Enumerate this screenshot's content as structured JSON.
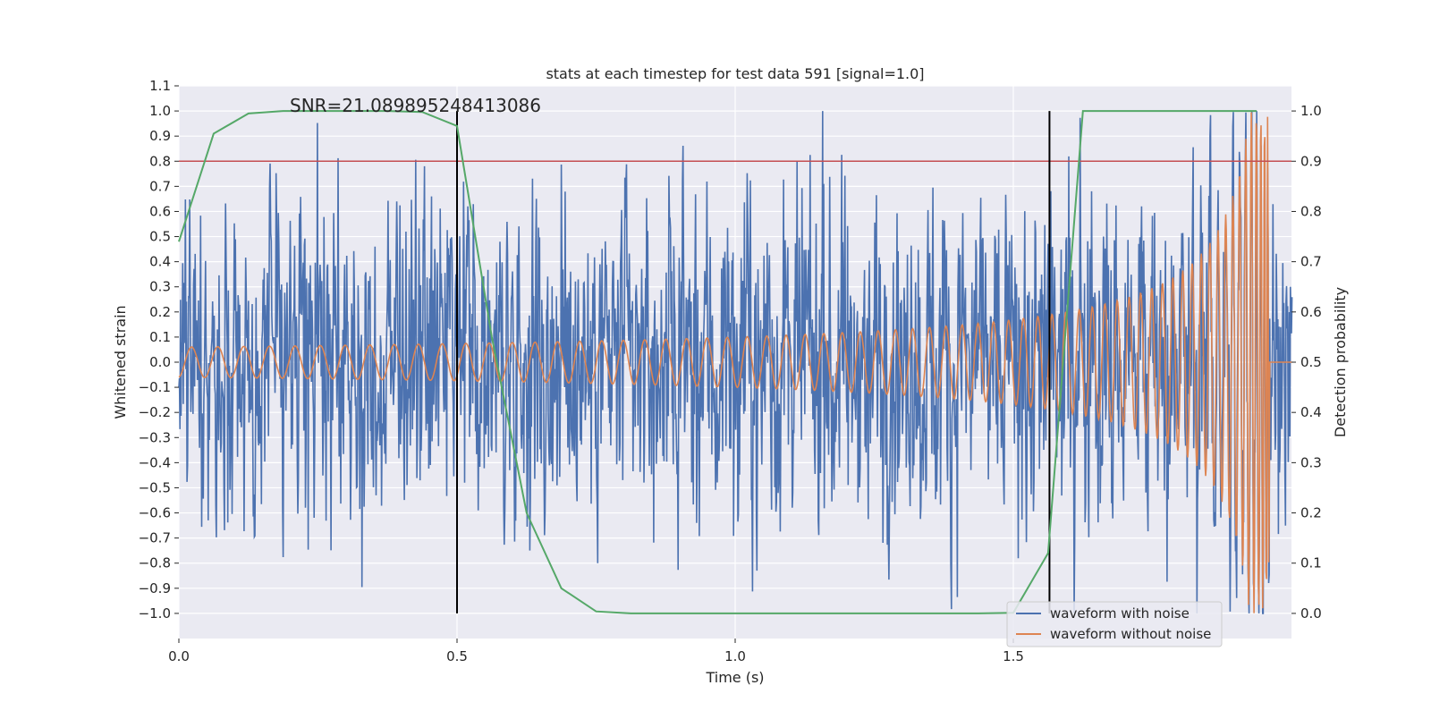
{
  "chart_data": {
    "type": "line",
    "title": "stats at each timestep for test data 591 [signal=1.0]",
    "annotation": "SNR=21.089895248413086",
    "xlabel": "Time (s)",
    "ylabel": "Whitened strain",
    "y2label": "Detection probability",
    "xlim": [
      0.0,
      2.0
    ],
    "ylim": [
      -1.1,
      1.1
    ],
    "y2lim": [
      -0.05,
      1.05
    ],
    "x_ticks": [
      "0.0",
      "0.5",
      "1.0",
      "1.5"
    ],
    "y_ticks": [
      "1.1",
      "1.0",
      "0.9",
      "0.8",
      "0.7",
      "0.6",
      "0.5",
      "0.4",
      "0.3",
      "0.2",
      "0.1",
      "0.0",
      "−0.1",
      "−0.2",
      "−0.3",
      "−0.4",
      "−0.5",
      "−0.6",
      "−0.7",
      "−0.8",
      "−0.9",
      "−1.0"
    ],
    "y2_ticks": [
      "1.0",
      "0.9",
      "0.8",
      "0.7",
      "0.6",
      "0.5",
      "0.4",
      "0.3",
      "0.2",
      "0.1",
      "0.0"
    ],
    "threshold": {
      "y": 0.8,
      "color": "#c44e52"
    },
    "vertical_lines": [
      0.5,
      1.565
    ],
    "grid": true,
    "legend_position": "bottom-right",
    "series": [
      {
        "name": "waveform with noise",
        "color": "#4c72b0",
        "description": "high-frequency whitened strain noise, roughly within ±0.6 with spikes up to 1.0 and down to -1.0"
      },
      {
        "name": "waveform without noise",
        "color": "#dd8452",
        "description": "chirp signal, amplitude ~0.06 at t=0 growing to ~1.0 near t=1.96, frequency increasing"
      },
      {
        "name": "",
        "axis": "right",
        "color": "#55a868",
        "x": [
          0.0,
          0.0625,
          0.125,
          0.1875,
          0.25,
          0.3125,
          0.375,
          0.4375,
          0.5,
          0.5625,
          0.625,
          0.6875,
          0.75,
          0.8125,
          0.875,
          0.9375,
          1.0,
          1.0625,
          1.125,
          1.1875,
          1.25,
          1.3125,
          1.375,
          1.4375,
          1.5,
          1.5625,
          1.625,
          1.6875,
          1.75,
          1.8125,
          1.875,
          1.9375
        ],
        "values": [
          0.74,
          0.955,
          0.995,
          1.0,
          1.0,
          1.0,
          1.0,
          0.998,
          0.97,
          0.55,
          0.2,
          0.05,
          0.004,
          0.0,
          0.0,
          0.0,
          0.0,
          0.0,
          0.0,
          0.0,
          0.0,
          0.0,
          0.0,
          0.0,
          0.001,
          0.12,
          1.0,
          1.0,
          1.0,
          1.0,
          1.0,
          1.0
        ]
      }
    ]
  }
}
